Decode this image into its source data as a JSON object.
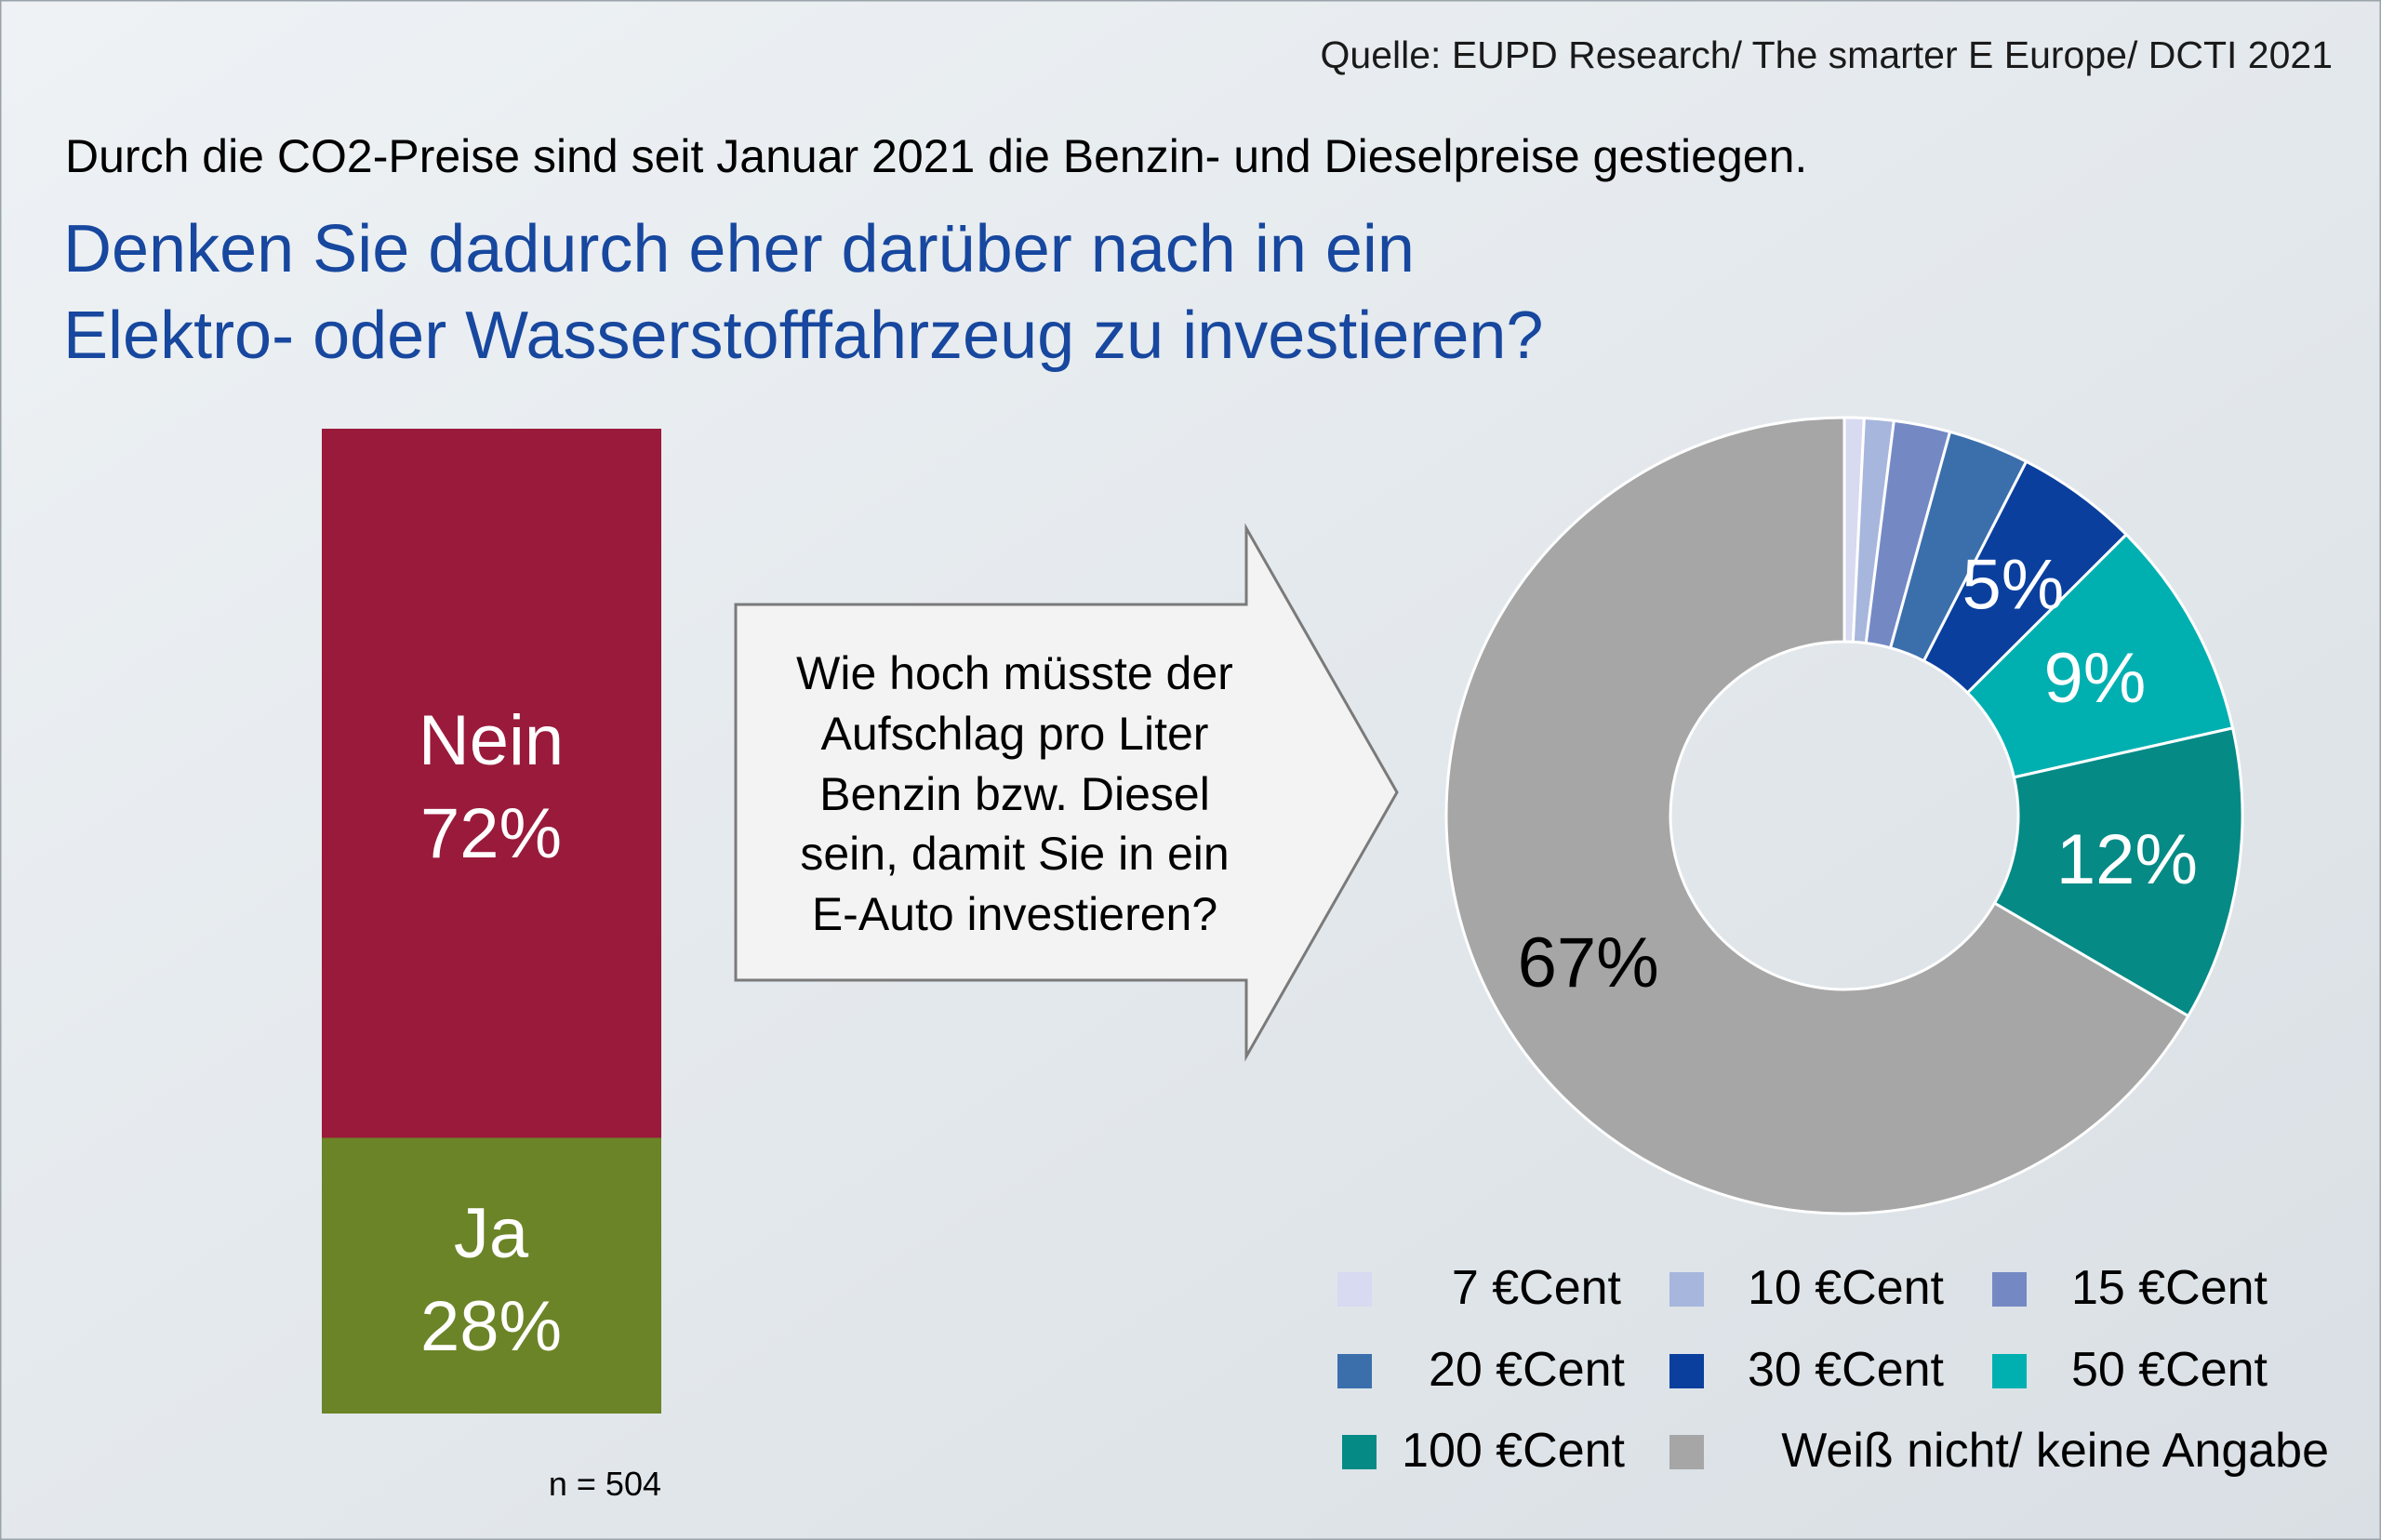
{
  "source": "Quelle: EUPD Research/ The smarter E Europe/ DCTI 2021",
  "intro": "Durch die CO2-Preise sind seit Januar 2021 die Benzin- und Dieselpreise gestiegen.",
  "question": {
    "line1": "Denken Sie dadurch eher darüber nach in ein",
    "line2": "Elektro- oder Wasserstofffahrzeug zu investieren?"
  },
  "arrow_text": {
    "line1": "Wie hoch müsste der",
    "line2": "Aufschlag pro Liter",
    "line3": "Benzin bzw. Diesel",
    "line4": "sein, damit Sie in ein",
    "line5": "E-Auto investieren?"
  },
  "sample_note": "n = 504",
  "colors": {
    "background": "#e3e8ec",
    "title_blue": "#17479e",
    "nein": "#9a1a3b",
    "ja": "#6b8427"
  },
  "chart_data": [
    {
      "type": "bar",
      "stacked": true,
      "categories": [
        "Nein",
        "Ja"
      ],
      "values": [
        72,
        28
      ],
      "labels": [
        "Nein",
        "Ja"
      ],
      "value_labels": [
        "72%",
        "28%"
      ]
    },
    {
      "type": "pie",
      "donut": true,
      "slices": [
        {
          "name": "7 €Cent",
          "value": 0.8,
          "color": "#d7daf0",
          "label": ""
        },
        {
          "name": "10 €Cent",
          "value": 1.2,
          "color": "#a7b6dc",
          "label": ""
        },
        {
          "name": "15 €Cent",
          "value": 2.3,
          "color": "#7489c4",
          "label": ""
        },
        {
          "name": "20 €Cent",
          "value": 3.3,
          "color": "#3b6fac",
          "label": ""
        },
        {
          "name": "30 €Cent",
          "value": 5,
          "color": "#0a3f9e",
          "label": "5%"
        },
        {
          "name": "50 €Cent",
          "value": 9,
          "color": "#00b0b1",
          "label": "9%"
        },
        {
          "name": "100 €Cent",
          "value": 12,
          "color": "#058a86",
          "label": "12%"
        },
        {
          "name": "Weiß nicht/ keine Angabe",
          "value": 67,
          "color": "#a6a6a6",
          "label": "67%"
        }
      ],
      "legend": [
        "7 €Cent",
        "10 €Cent",
        "15 €Cent",
        "20 €Cent",
        "30 €Cent",
        "50 €Cent",
        "100 €Cent",
        "Weiß nicht/ keine Angabe"
      ],
      "legend_position": "bottom-right"
    }
  ]
}
